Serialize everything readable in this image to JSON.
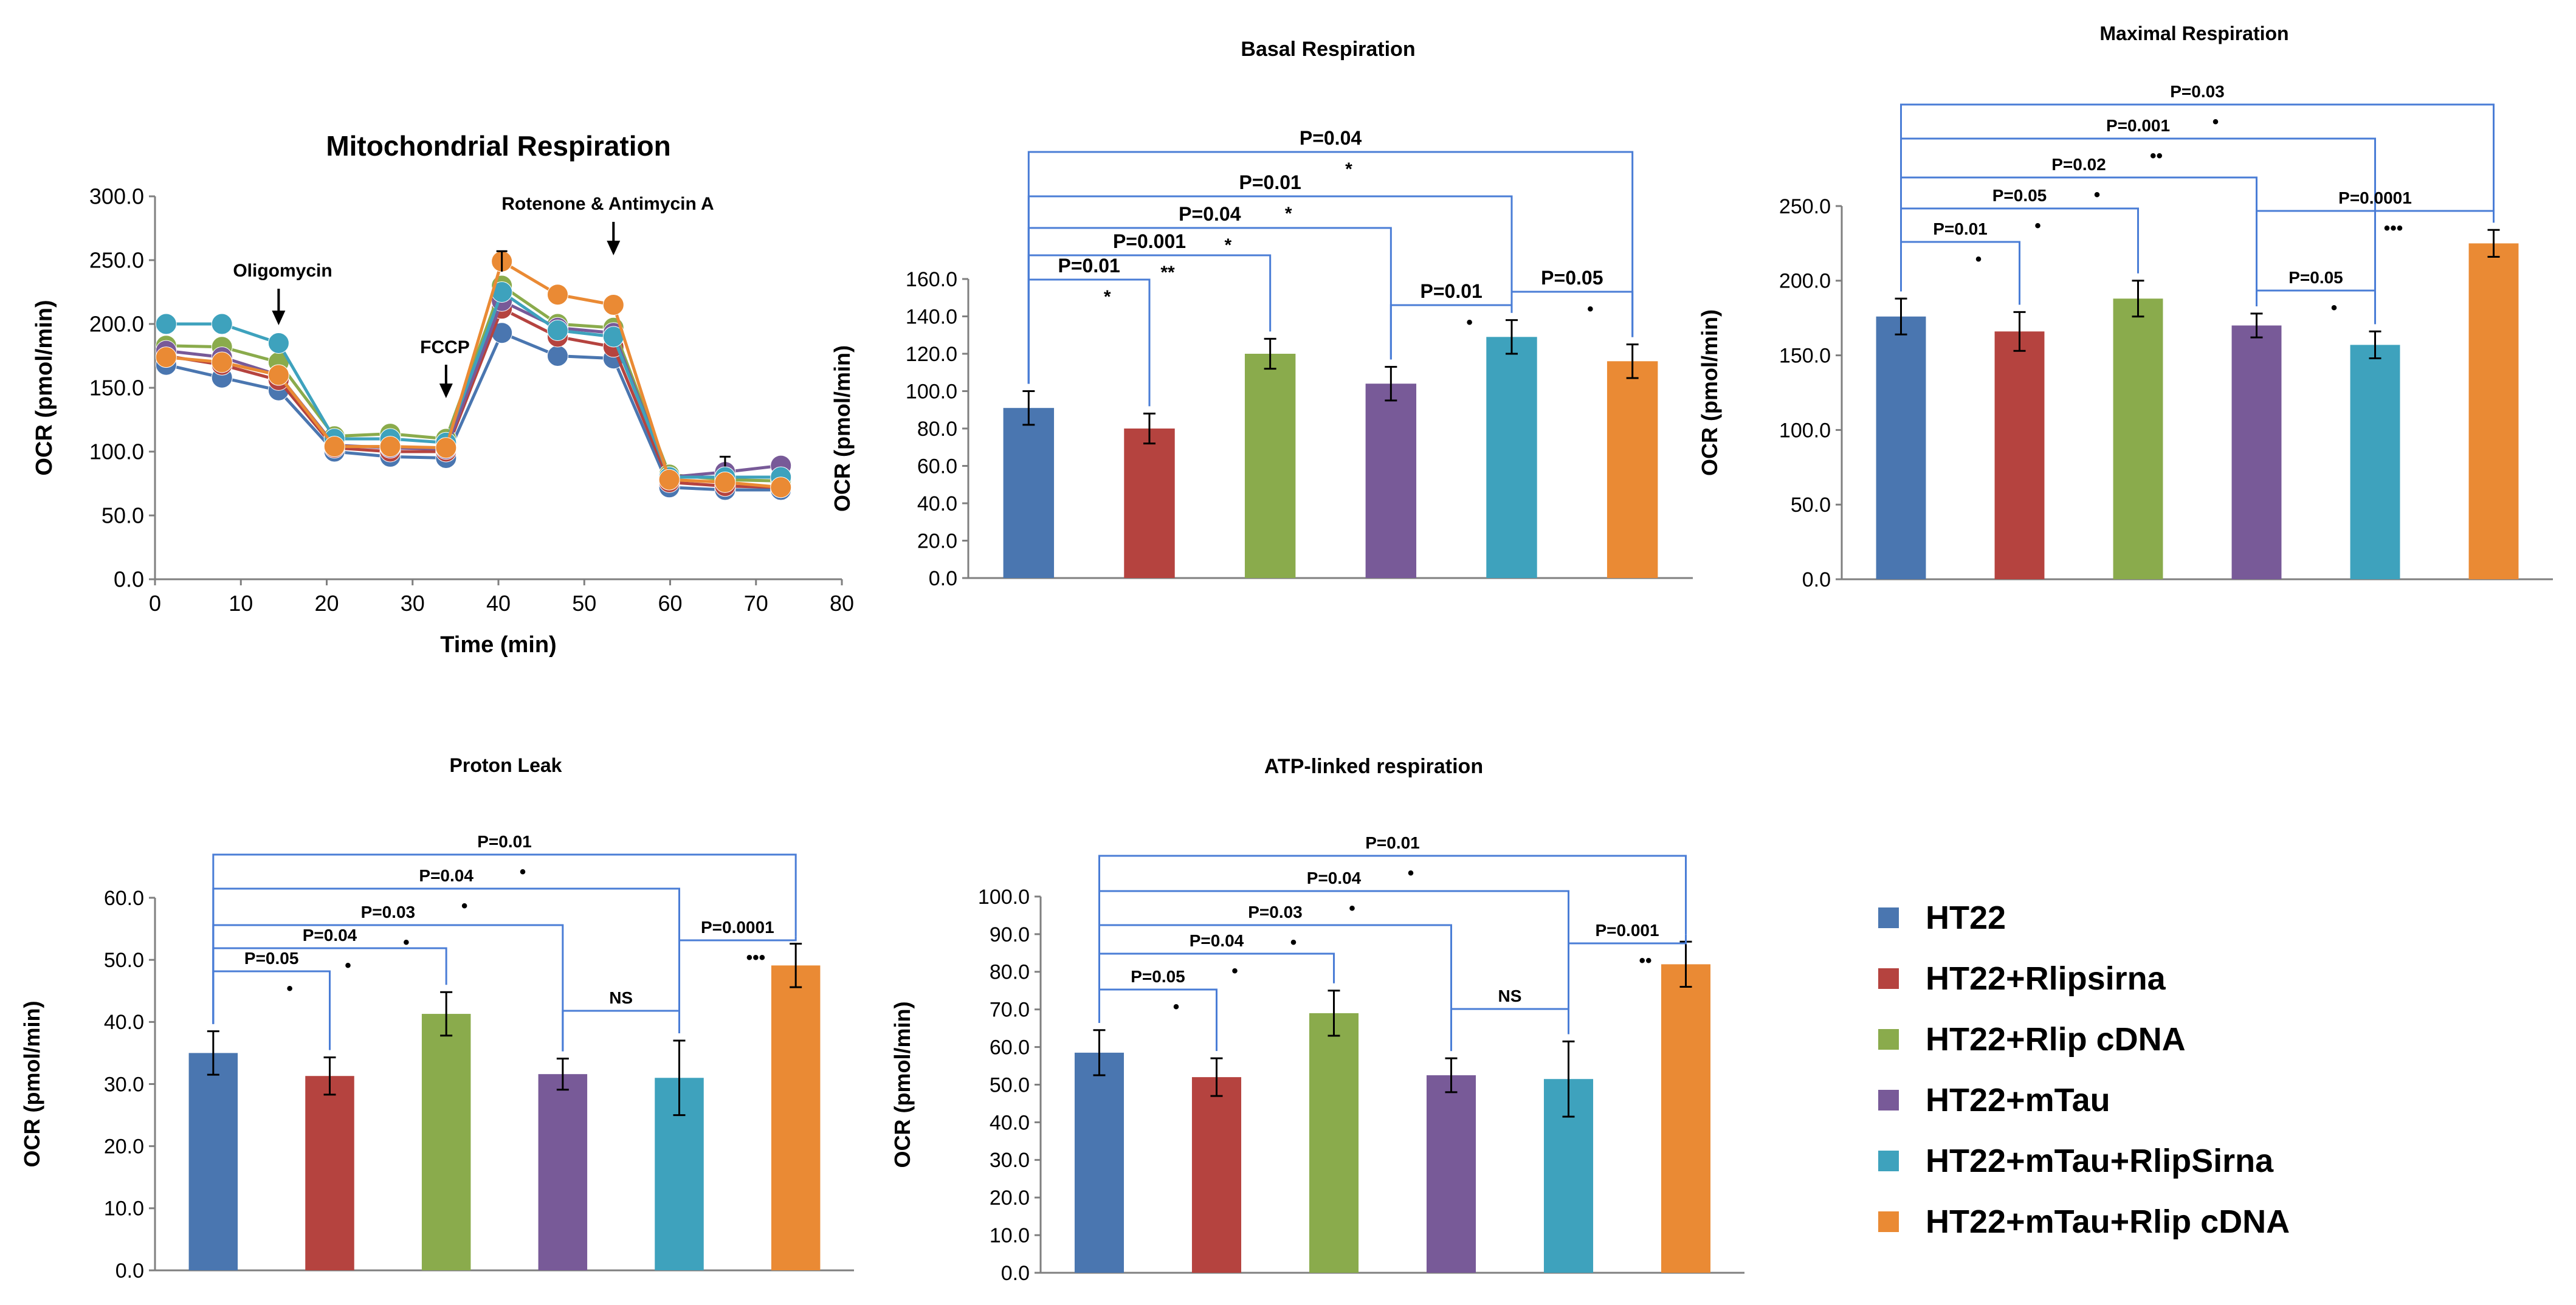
{
  "colors": {
    "HT22": "#4a76b0",
    "HT22+Rlipsirna": "#b5433f",
    "HT22+Rlip cDNA": "#8aab4c",
    "HT22+mTau": "#785a98",
    "HT22+mTau+RlipSirna": "#3ea2bd",
    "HT22+mTau+Rlip cDNA": "#ea8a34",
    "bracket": "#4a7dd6"
  },
  "legend": {
    "items": [
      "HT22",
      "HT22+Rlipsirna",
      "HT22+Rlip cDNA",
      "HT22+mTau",
      "HT22+mTau+RlipSirna",
      "HT22+mTau+Rlip cDNA"
    ]
  },
  "chart_data": [
    {
      "type": "line",
      "title": "Mitochondrial Respiration",
      "xlabel": "Time (min)",
      "ylabel": "OCR (pmol/min)",
      "xlim": [
        0,
        80
      ],
      "ylim": [
        0,
        300
      ],
      "xticks": [
        "0",
        "10",
        "20",
        "30",
        "40",
        "50",
        "60",
        "70",
        "80"
      ],
      "yticks": [
        "0.0",
        "50.0",
        "100.0",
        "150.0",
        "200.0",
        "250.0",
        "300.0"
      ],
      "x": [
        1.3,
        7.8,
        14.4,
        20.9,
        27.4,
        33.9,
        40.4,
        46.9,
        53.4,
        59.9,
        66.4,
        72.9
      ],
      "series": [
        {
          "name": "HT22",
          "values": [
            168,
            158,
            148,
            100,
            96,
            95,
            193,
            175,
            173,
            72,
            70,
            70
          ]
        },
        {
          "name": "HT22+Rlipsirna",
          "values": [
            175,
            168,
            156,
            103,
            100,
            100,
            212,
            190,
            182,
            76,
            73,
            72
          ]
        },
        {
          "name": "HT22+Rlip cDNA",
          "values": [
            183,
            182,
            170,
            112,
            114,
            110,
            230,
            200,
            197,
            82,
            78,
            77
          ]
        },
        {
          "name": "HT22+mTau",
          "values": [
            179,
            174,
            160,
            105,
            103,
            102,
            218,
            197,
            193,
            80,
            84,
            89
          ]
        },
        {
          "name": "HT22+mTau+RlipSirna",
          "values": [
            200,
            200,
            185,
            110,
            110,
            107,
            225,
            195,
            190,
            80,
            80,
            80
          ]
        },
        {
          "name": "HT22+mTau+Rlip cDNA",
          "values": [
            174,
            170,
            160,
            104,
            104,
            103,
            249,
            223,
            215,
            78,
            76,
            72
          ]
        }
      ],
      "errors": {
        "HT22+mTau": {
          "index": 10,
          "err": 12
        },
        "HT22+mTau+Rlip cDNA": {
          "index": 6,
          "err": 8
        }
      },
      "annotations": [
        "Oligomycin",
        "FCCP",
        "Rotenone & Antimycin A"
      ]
    },
    {
      "type": "bar",
      "title": "Basal Respiration",
      "ylabel": "OCR (pmol/min)",
      "ylim": [
        0,
        160
      ],
      "yticks": [
        "0.0",
        "20.0",
        "40.0",
        "60.0",
        "80.0",
        "100.0",
        "120.0",
        "140.0",
        "160.0"
      ],
      "categories": [
        "HT22",
        "HT22+Rlipsirna",
        "HT22+Rlip cDNA",
        "HT22+mTau",
        "HT22+mTau+RlipSirna",
        "HT22+mTau+Rlip cDNA"
      ],
      "values": [
        91,
        80,
        120,
        104,
        129,
        116
      ],
      "errors": [
        9,
        8,
        8,
        9,
        9,
        9
      ],
      "comparisons": [
        {
          "from": 0,
          "to": 1,
          "p": "P=0.01",
          "sig": "*"
        },
        {
          "from": 0,
          "to": 2,
          "p": "P=0.001",
          "sig": "**"
        },
        {
          "from": 0,
          "to": 3,
          "p": "P=0.04",
          "sig": "*"
        },
        {
          "from": 0,
          "to": 4,
          "p": "P=0.01",
          "sig": "*"
        },
        {
          "from": 0,
          "to": 5,
          "p": "P=0.04",
          "sig": "*"
        },
        {
          "from": 3,
          "to": 4,
          "p": "P=0.01",
          "sig": "•"
        },
        {
          "from": 4,
          "to": 5,
          "p": "P=0.05",
          "sig": "•"
        }
      ]
    },
    {
      "type": "bar",
      "title": "Maximal Respiration",
      "ylabel": "OCR (pmol/min)",
      "ylim": [
        0,
        250
      ],
      "yticks": [
        "0.0",
        "50.0",
        "100.0",
        "150.0",
        "200.0",
        "250.0"
      ],
      "categories": [
        "HT22",
        "HT22+Rlipsirna",
        "HT22+Rlip cDNA",
        "HT22+mTau",
        "HT22+mTau+RlipSirna",
        "HT22+mTau+Rlip cDNA"
      ],
      "values": [
        176,
        166,
        188,
        170,
        157,
        225
      ],
      "errors": [
        12,
        13,
        12,
        8,
        9,
        9
      ],
      "comparisons": [
        {
          "from": 0,
          "to": 1,
          "p": "P=0.01",
          "sig": "•"
        },
        {
          "from": 0,
          "to": 2,
          "p": "P=0.05",
          "sig": "•"
        },
        {
          "from": 0,
          "to": 3,
          "p": "P=0.02",
          "sig": "•"
        },
        {
          "from": 0,
          "to": 4,
          "p": "P=0.001",
          "sig": "••"
        },
        {
          "from": 0,
          "to": 5,
          "p": "P=0.03",
          "sig": "•"
        },
        {
          "from": 3,
          "to": 4,
          "p": "P=0.05",
          "sig": "•"
        },
        {
          "from": 3,
          "to": 5,
          "p": "P=0.0001",
          "sig": "•••"
        }
      ]
    },
    {
      "type": "bar",
      "title": "Proton Leak",
      "ylabel": "OCR (pmol/min)",
      "ylim": [
        0,
        60
      ],
      "yticks": [
        "0.0",
        "10.0",
        "20.0",
        "30.0",
        "40.0",
        "50.0",
        "60.0"
      ],
      "categories": [
        "HT22",
        "HT22+Rlipsirna",
        "HT22+Rlip cDNA",
        "HT22+mTau",
        "HT22+mTau+RlipSirna",
        "HT22+mTau+Rlip cDNA"
      ],
      "values": [
        35,
        31.3,
        41.3,
        31.6,
        31,
        49.1
      ],
      "errors": [
        3.5,
        3,
        3.5,
        2.5,
        6,
        3.5
      ],
      "comparisons": [
        {
          "from": 0,
          "to": 1,
          "p": "P=0.05",
          "sig": "•"
        },
        {
          "from": 0,
          "to": 2,
          "p": "P=0.04",
          "sig": "•"
        },
        {
          "from": 0,
          "to": 3,
          "p": "P=0.03",
          "sig": "•"
        },
        {
          "from": 0,
          "to": 4,
          "p": "P=0.04",
          "sig": "•"
        },
        {
          "from": 0,
          "to": 5,
          "p": "P=0.01",
          "sig": "•"
        },
        {
          "from": 3,
          "to": 4,
          "p": "NS",
          "sig": ""
        },
        {
          "from": 4,
          "to": 5,
          "p": "P=0.0001",
          "sig": "•••"
        }
      ]
    },
    {
      "type": "bar",
      "title": "ATP-linked respiration",
      "ylabel": "OCR (pmol/min)",
      "ylim": [
        0,
        100
      ],
      "yticks": [
        "0.0",
        "10.0",
        "20.0",
        "30.0",
        "40.0",
        "50.0",
        "60.0",
        "70.0",
        "80.0",
        "90.0",
        "100.0"
      ],
      "categories": [
        "HT22",
        "HT22+Rlipsirna",
        "HT22+Rlip cDNA",
        "HT22+mTau",
        "HT22+mTau+RlipSirna",
        "HT22+mTau+Rlip cDNA"
      ],
      "values": [
        58.5,
        52,
        69,
        52.5,
        51.5,
        82
      ],
      "errors": [
        6,
        5,
        6,
        4.5,
        10,
        6
      ],
      "comparisons": [
        {
          "from": 0,
          "to": 1,
          "p": "P=0.05",
          "sig": "•"
        },
        {
          "from": 0,
          "to": 2,
          "p": "P=0.04",
          "sig": "•"
        },
        {
          "from": 0,
          "to": 3,
          "p": "P=0.03",
          "sig": "•"
        },
        {
          "from": 0,
          "to": 4,
          "p": "P=0.04",
          "sig": "•"
        },
        {
          "from": 0,
          "to": 5,
          "p": "P=0.01",
          "sig": "•"
        },
        {
          "from": 3,
          "to": 4,
          "p": "NS",
          "sig": ""
        },
        {
          "from": 4,
          "to": 5,
          "p": "P=0.001",
          "sig": "••"
        }
      ]
    }
  ]
}
